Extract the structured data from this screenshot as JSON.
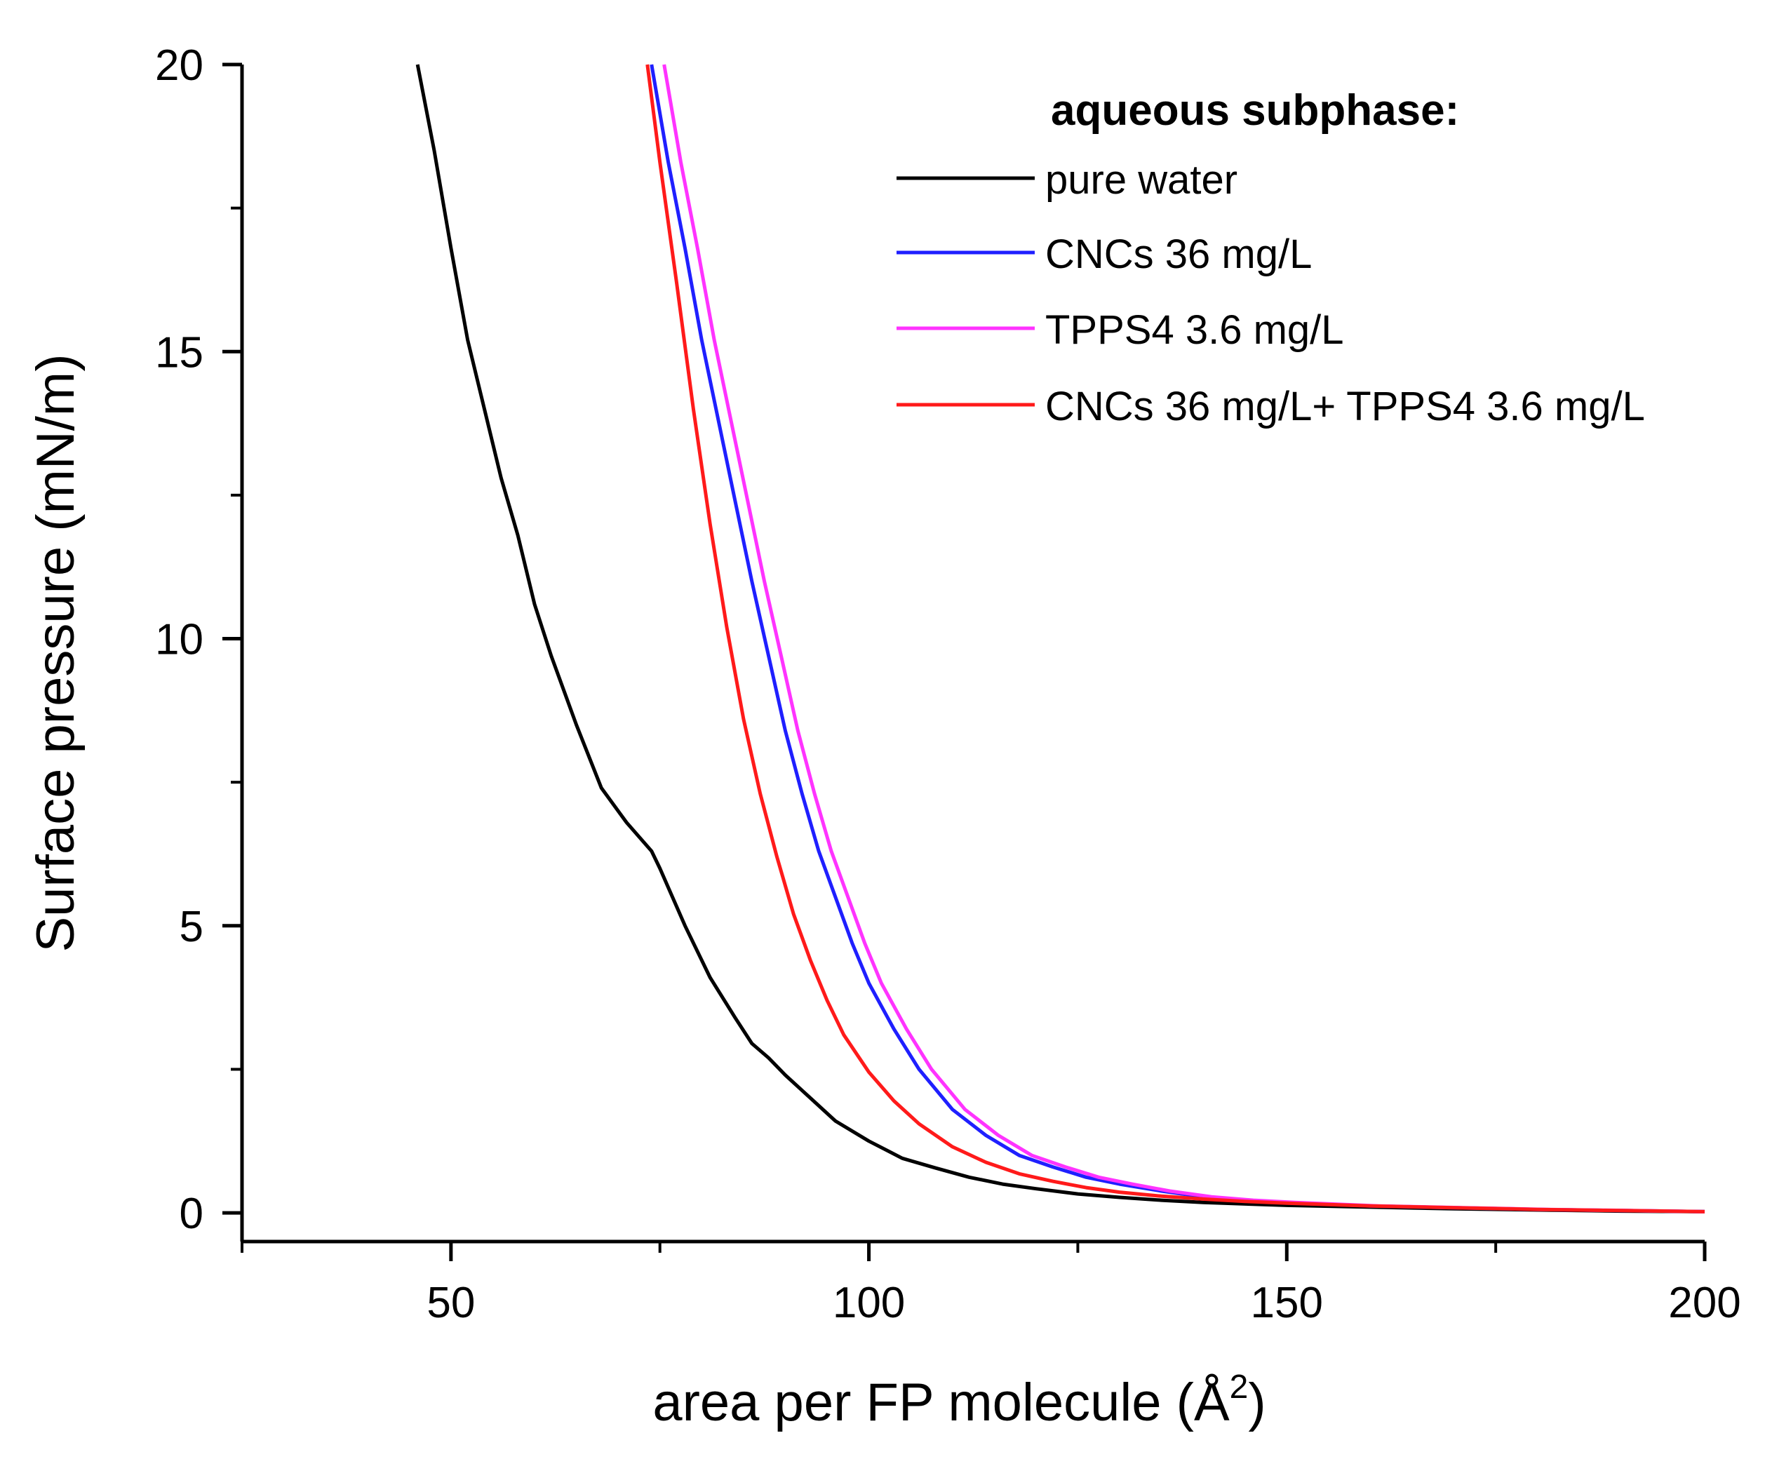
{
  "chart_data": {
    "type": "line",
    "title": "",
    "xlabel": "area per FP molecule (Å",
    "xlabel_sup": "2",
    "xlabel_close": ")",
    "ylabel": "Surface pressure (mN/m)",
    "xlim": [
      25,
      200
    ],
    "ylim": [
      -0.5,
      20
    ],
    "x_ticks": [
      50,
      100,
      150,
      200
    ],
    "x_tick_labels": [
      "50",
      "100",
      "150",
      "200"
    ],
    "y_ticks": [
      0,
      5,
      10,
      15,
      20
    ],
    "y_tick_labels": [
      "0",
      "5",
      "10",
      "15",
      "20"
    ],
    "legend_title": "aqueous subphase:",
    "legend_position": "top-right",
    "series": [
      {
        "name": "pure water",
        "color": "#000000",
        "x": [
          46,
          48,
          50,
          52,
          54,
          56,
          58,
          60,
          62,
          65,
          68,
          71,
          74,
          75,
          78,
          81,
          84,
          86,
          88,
          90,
          93,
          96,
          100,
          104,
          108,
          112,
          116,
          120,
          125,
          130,
          135,
          140,
          150,
          160,
          170,
          180,
          190,
          200
        ],
        "y": [
          20,
          18.5,
          16.8,
          15.2,
          14.0,
          12.8,
          11.8,
          10.6,
          9.7,
          8.5,
          7.4,
          6.8,
          6.3,
          6.0,
          5.0,
          4.1,
          3.4,
          2.95,
          2.7,
          2.4,
          2.0,
          1.6,
          1.25,
          0.95,
          0.78,
          0.62,
          0.5,
          0.42,
          0.33,
          0.27,
          0.22,
          0.18,
          0.13,
          0.1,
          0.07,
          0.05,
          0.03,
          0.02
        ]
      },
      {
        "name": "CNCs 36 mg/L",
        "color": "#1f1fff",
        "x": [
          74,
          76,
          78,
          80,
          82,
          84,
          86,
          88,
          90,
          92,
          94,
          96,
          98,
          100,
          103,
          106,
          110,
          114,
          118,
          122,
          126,
          130,
          135,
          140,
          145,
          150,
          155,
          160,
          170,
          180,
          190,
          200
        ],
        "y": [
          20,
          18.3,
          16.8,
          15.2,
          13.8,
          12.4,
          11.0,
          9.7,
          8.4,
          7.3,
          6.3,
          5.5,
          4.7,
          4.0,
          3.2,
          2.5,
          1.8,
          1.35,
          1.0,
          0.8,
          0.62,
          0.5,
          0.38,
          0.28,
          0.22,
          0.18,
          0.15,
          0.12,
          0.09,
          0.06,
          0.04,
          0.02
        ]
      },
      {
        "name": "TPPS4 3.6 mg/L",
        "color": "#ff33ff",
        "x": [
          75.5,
          77.5,
          79.5,
          81.5,
          83.5,
          85.5,
          87.5,
          89.5,
          91.5,
          93.5,
          95.5,
          97.5,
          99.5,
          101.5,
          104.5,
          107.5,
          111.5,
          115.5,
          119.5,
          123.5,
          127.5,
          131.5,
          136,
          141,
          146,
          151,
          156,
          161,
          171,
          181,
          191,
          200
        ],
        "y": [
          20,
          18.3,
          16.8,
          15.2,
          13.8,
          12.4,
          11.0,
          9.7,
          8.4,
          7.3,
          6.3,
          5.5,
          4.7,
          4.0,
          3.2,
          2.5,
          1.8,
          1.35,
          1.0,
          0.8,
          0.62,
          0.5,
          0.38,
          0.28,
          0.22,
          0.18,
          0.15,
          0.12,
          0.09,
          0.06,
          0.04,
          0.02
        ]
      },
      {
        "name": "CNCs 36 mg/L+ TPPS4 3.6 mg/L",
        "color": "#ff1a1a",
        "x": [
          73.5,
          75,
          77,
          79,
          81,
          83,
          85,
          87,
          89,
          91,
          93,
          95,
          97,
          100,
          103,
          106,
          110,
          114,
          118,
          122,
          126,
          130,
          135,
          140,
          145,
          150,
          160,
          170,
          180,
          190,
          200
        ],
        "y": [
          20,
          18.3,
          16.2,
          14.0,
          12.0,
          10.2,
          8.6,
          7.3,
          6.2,
          5.2,
          4.4,
          3.7,
          3.1,
          2.45,
          1.95,
          1.55,
          1.15,
          0.88,
          0.68,
          0.55,
          0.44,
          0.36,
          0.29,
          0.24,
          0.2,
          0.17,
          0.12,
          0.09,
          0.06,
          0.04,
          0.02
        ]
      }
    ]
  }
}
